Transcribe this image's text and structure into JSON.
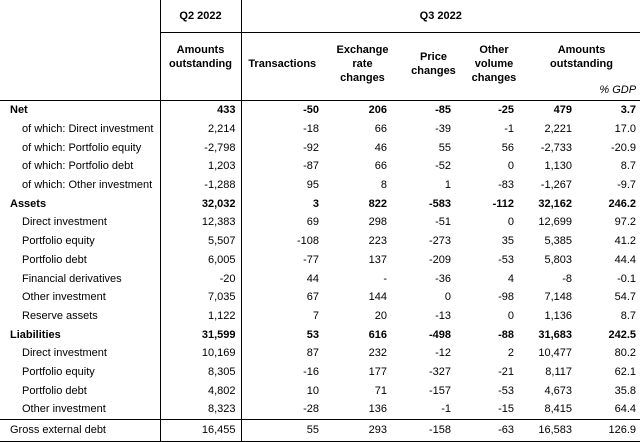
{
  "header": {
    "period_q2": "Q2 2022",
    "period_q3": "Q3 2022",
    "columns": [
      "Amounts outstanding",
      "Transactions",
      "Exchange rate changes",
      "Price changes",
      "Other volume changes",
      "Amounts outstanding"
    ],
    "unit": "% GDP"
  },
  "sections": [
    {
      "label": "Net",
      "values": [
        "433",
        "-50",
        "206",
        "-85",
        "-25",
        "479",
        "3.7"
      ],
      "items": [
        {
          "label": "of which: Direct investment",
          "values": [
            "2,214",
            "-18",
            "66",
            "-39",
            "-1",
            "2,221",
            "17.0"
          ]
        },
        {
          "label": "of which: Portfolio equity",
          "values": [
            "-2,798",
            "-92",
            "46",
            "55",
            "56",
            "-2,733",
            "-20.9"
          ]
        },
        {
          "label": "of which: Portfolio debt",
          "values": [
            "1,203",
            "-87",
            "66",
            "-52",
            "0",
            "1,130",
            "8.7"
          ]
        },
        {
          "label": "of which: Other investment",
          "values": [
            "-1,288",
            "95",
            "8",
            "1",
            "-83",
            "-1,267",
            "-9.7"
          ]
        }
      ]
    },
    {
      "label": "Assets",
      "values": [
        "32,032",
        "3",
        "822",
        "-583",
        "-112",
        "32,162",
        "246.2"
      ],
      "items": [
        {
          "label": "Direct investment",
          "values": [
            "12,383",
            "69",
            "298",
            "-51",
            "0",
            "12,699",
            "97.2"
          ]
        },
        {
          "label": "Portfolio equity",
          "values": [
            "5,507",
            "-108",
            "223",
            "-273",
            "35",
            "5,385",
            "41.2"
          ]
        },
        {
          "label": "Portfolio debt",
          "values": [
            "6,005",
            "-77",
            "137",
            "-209",
            "-53",
            "5,803",
            "44.4"
          ]
        },
        {
          "label": "Financial derivatives",
          "values": [
            "-20",
            "44",
            "-",
            "-36",
            "4",
            "-8",
            "-0.1"
          ]
        },
        {
          "label": "Other investment",
          "values": [
            "7,035",
            "67",
            "144",
            "0",
            "-98",
            "7,148",
            "54.7"
          ]
        },
        {
          "label": "Reserve assets",
          "values": [
            "1,122",
            "7",
            "20",
            "-13",
            "0",
            "1,136",
            "8.7"
          ]
        }
      ]
    },
    {
      "label": "Liabilities",
      "values": [
        "31,599",
        "53",
        "616",
        "-498",
        "-88",
        "31,683",
        "242.5"
      ],
      "items": [
        {
          "label": "Direct investment",
          "values": [
            "10,169",
            "87",
            "232",
            "-12",
            "2",
            "10,477",
            "80.2"
          ]
        },
        {
          "label": "Portfolio equity",
          "values": [
            "8,305",
            "-16",
            "177",
            "-327",
            "-21",
            "8,117",
            "62.1"
          ]
        },
        {
          "label": "Portfolio debt",
          "values": [
            "4,802",
            "10",
            "71",
            "-157",
            "-53",
            "4,673",
            "35.8"
          ]
        },
        {
          "label": "Other investment",
          "values": [
            "8,323",
            "-28",
            "136",
            "-1",
            "-15",
            "8,415",
            "64.4"
          ]
        }
      ]
    }
  ],
  "total": {
    "label": "Gross external debt",
    "values": [
      "16,455",
      "55",
      "293",
      "-158",
      "-63",
      "16,583",
      "126.9"
    ]
  }
}
